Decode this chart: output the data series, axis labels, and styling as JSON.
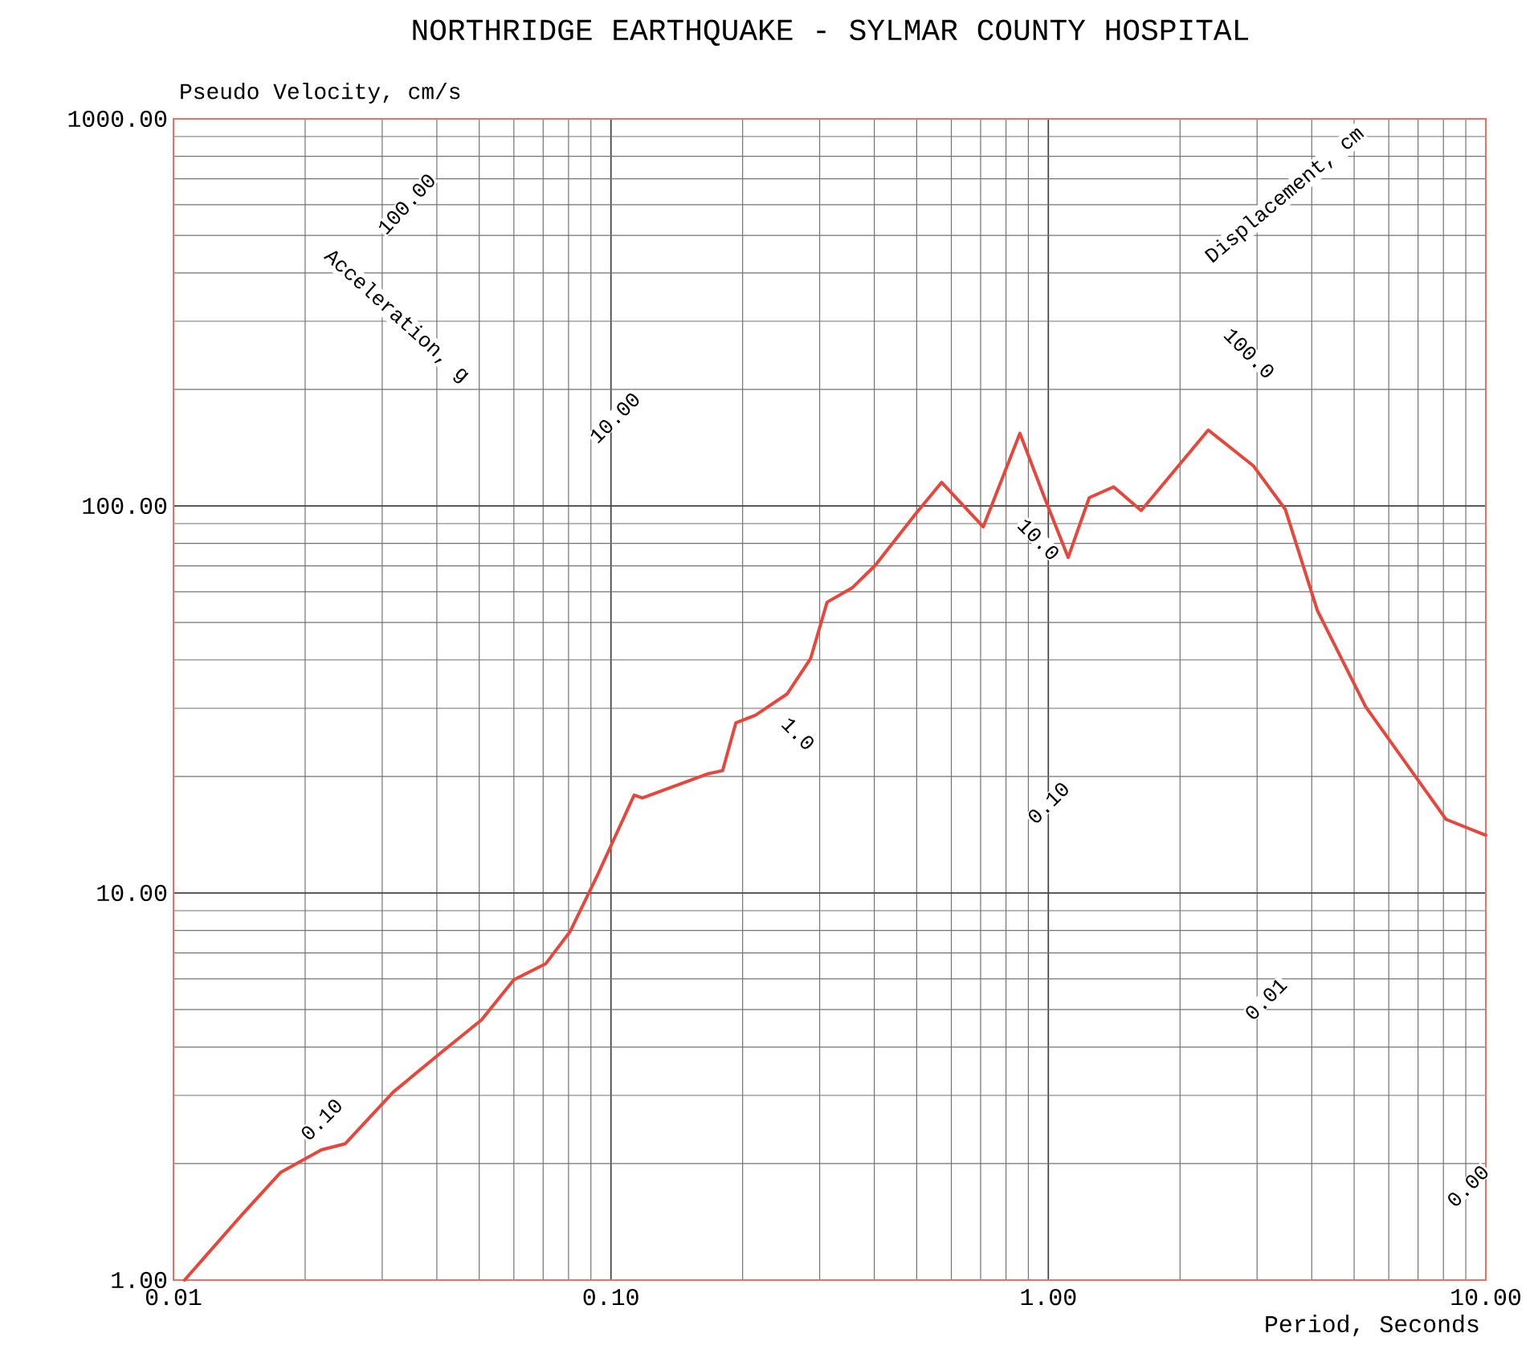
{
  "chart_data": {
    "type": "line",
    "title": "NORTHRIDGE EARTHQUAKE - SYLMAR COUNTY HOSPITAL",
    "xlabel": "Period, Seconds",
    "ylabel": "Pseudo Velocity, cm/s",
    "log": "xy",
    "grid": true,
    "marker": "none",
    "line_style": "solid",
    "xlim": [
      0.01,
      10
    ],
    "ylim": [
      1,
      1000
    ],
    "xticks": [
      {
        "value": 0.01,
        "label": "0.01"
      },
      {
        "value": 0.1,
        "label": "0.10"
      },
      {
        "value": 1,
        "label": "1.00"
      },
      {
        "value": 10,
        "label": "10.00"
      }
    ],
    "yticks": [
      {
        "value": 1,
        "label": "1.00"
      },
      {
        "value": 10,
        "label": "10.00"
      },
      {
        "value": 100,
        "label": "100.00"
      },
      {
        "value": 1000,
        "label": "1000.00"
      }
    ],
    "series": [
      {
        "color": "#e8463a",
        "x": [
          0.0106,
          0.0143,
          0.0176,
          0.0218,
          0.0247,
          0.0318,
          0.041,
          0.0506,
          0.06,
          0.071,
          0.0806,
          0.0931,
          0.113,
          0.118,
          0.166,
          0.18,
          0.193,
          0.214,
          0.253,
          0.286,
          0.312,
          0.356,
          0.402,
          0.497,
          0.57,
          0.71,
          0.861,
          0.98,
          1.11,
          1.24,
          1.41,
          1.63,
          2.32,
          2.94,
          3.48,
          4.12,
          5.31,
          8.11,
          10.0
        ],
        "values": [
          1.0,
          1.47,
          1.9,
          2.17,
          2.25,
          3.06,
          3.88,
          4.7,
          5.97,
          6.57,
          7.94,
          11.1,
          17.9,
          17.6,
          20.3,
          20.7,
          27.5,
          28.8,
          32.7,
          40.3,
          56.4,
          61.4,
          70.2,
          95.3,
          115,
          88.3,
          154,
          105,
          73.6,
          105,
          112,
          97.3,
          157,
          127,
          98,
          53.7,
          30.3,
          15.5,
          14.1
        ]
      }
    ],
    "annotations": [
      "Acceleration, g",
      {
        "text": "100.00",
        "x": 0.0341,
        "y": 603
      },
      {
        "text": "10.00",
        "x": 0.102,
        "y": 169
      },
      {
        "text": "1.0",
        "x": 0.268,
        "y": 25.8
      },
      {
        "text": "0.10",
        "x": 0.0218,
        "y": 2.6
      },
      "Displacement, cm",
      {
        "text": "100.0",
        "x": 2.88,
        "y": 248
      },
      {
        "text": "10.0",
        "x": 0.95,
        "y": 82
      },
      {
        "text": "0.10",
        "x": 1.0,
        "y": 17.1
      },
      {
        "text": "0.01",
        "x": 3.14,
        "y": 5.32
      },
      {
        "text": "0.00",
        "x": 9.1,
        "y": 1.75
      }
    ]
  }
}
